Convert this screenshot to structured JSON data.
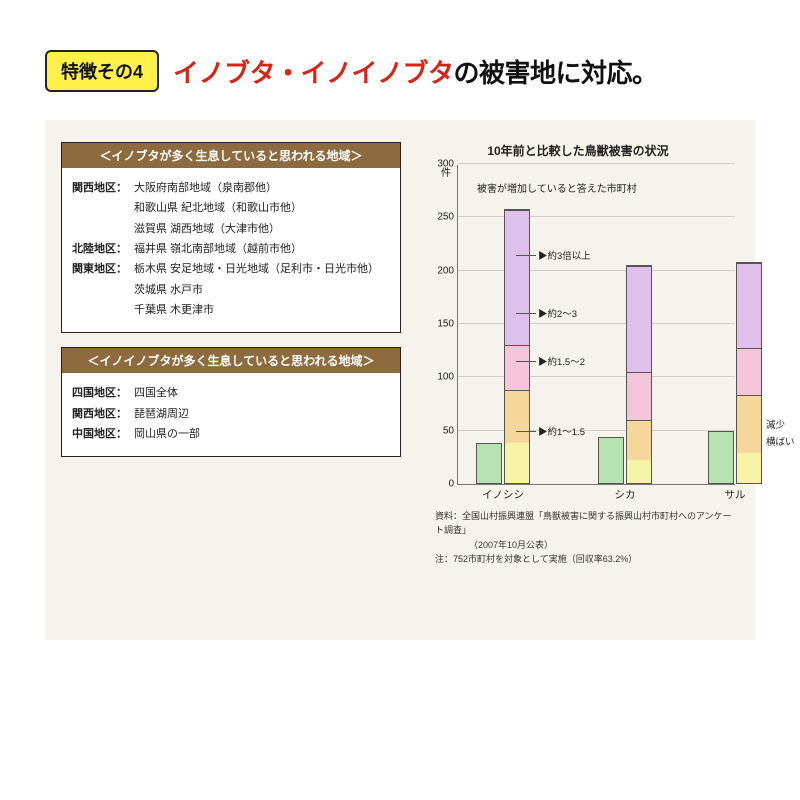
{
  "header": {
    "badge": "特徴その4",
    "headline_red": "イノブタ・イノイノブタ",
    "headline_rest": "の被害地に対応。"
  },
  "panel1": {
    "title": "＜イノブタが多く生息していると思われる地域＞",
    "rows": [
      {
        "reg": "関西地区：",
        "txt": "大阪府南部地域（泉南郡他）"
      },
      {
        "reg": "",
        "txt": "和歌山県 紀北地域（和歌山市他）"
      },
      {
        "reg": "",
        "txt": "滋賀県 湖西地域（大津市他）"
      },
      {
        "reg": "北陸地区：",
        "txt": "福井県 嶺北南部地域（越前市他）"
      },
      {
        "reg": "関東地区：",
        "txt": "栃木県 安足地域・日光地域（足利市・日光市他）"
      },
      {
        "reg": "",
        "txt": "茨城県 水戸市"
      },
      {
        "reg": "",
        "txt": "千葉県 木更津市"
      }
    ]
  },
  "panel2": {
    "title": "＜イノイノブタが多く生息していると思われる地域＞",
    "rows": [
      {
        "reg": "四国地区：",
        "txt": "四国全体"
      },
      {
        "reg": "関西地区：",
        "txt": "琵琶湖周辺"
      },
      {
        "reg": "中国地区：",
        "txt": "岡山県の一部"
      }
    ]
  },
  "chart": {
    "title": "10年前と比較した鳥獣被害の状況",
    "yunit": "件",
    "annot": "被害が増加していると答えた市町村",
    "ymax": 300,
    "yticks": [
      0,
      50,
      100,
      150,
      200,
      250,
      300
    ],
    "colors": {
      "green": "#b7e2b1",
      "yellow": "#f6f2a6",
      "orange": "#f5d79c",
      "pink": "#f4c5d9",
      "purple": "#dfc0ea"
    },
    "leads": [
      {
        "text": "▶約3倍以上",
        "y": 215
      },
      {
        "text": "▶約2〜3",
        "y": 160
      },
      {
        "text": "▶約1.5〜2",
        "y": 115
      },
      {
        "text": "▶約1〜1.5",
        "y": 50
      }
    ],
    "right_labels": [
      {
        "text": "減少",
        "y": 56
      },
      {
        "text": "横ばい",
        "y": 40
      }
    ],
    "groups": [
      {
        "label": "イノシシ",
        "x": 18,
        "bars": [
          {
            "segs": [
              {
                "c": "green",
                "v": 38
              }
            ]
          },
          {
            "segs": [
              {
                "c": "yellow",
                "v": 38
              },
              {
                "c": "orange",
                "v": 50
              },
              {
                "c": "pink",
                "v": 42
              },
              {
                "c": "purple",
                "v": 128
              }
            ]
          }
        ]
      },
      {
        "label": "シカ",
        "x": 140,
        "bars": [
          {
            "segs": [
              {
                "c": "green",
                "v": 44
              }
            ]
          },
          {
            "segs": [
              {
                "c": "yellow",
                "v": 22
              },
              {
                "c": "orange",
                "v": 38
              },
              {
                "c": "pink",
                "v": 45
              },
              {
                "c": "purple",
                "v": 100
              }
            ]
          }
        ]
      },
      {
        "label": "サル",
        "x": 250,
        "bars": [
          {
            "segs": [
              {
                "c": "green",
                "v": 50
              }
            ]
          },
          {
            "segs": [
              {
                "c": "yellow",
                "v": 28
              },
              {
                "c": "orange",
                "v": 55
              },
              {
                "c": "pink",
                "v": 45
              },
              {
                "c": "purple",
                "v": 80
              }
            ]
          }
        ]
      }
    ],
    "footnote1": "資料：全国山村振興連盟「鳥獣被害に関する振興山村市町村へのアンケート調査」",
    "footnote2": "（2007年10月公表）",
    "footnote3": "注：752市町村を対象として実施（回収率63.2%）"
  }
}
